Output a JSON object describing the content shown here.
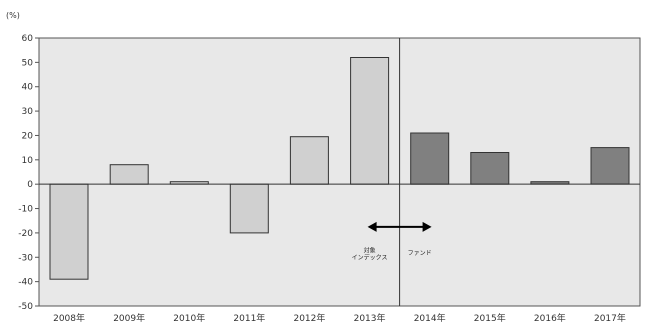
{
  "chart_data": {
    "type": "bar",
    "unit_label": "(%)",
    "categories": [
      "2008年",
      "2009年",
      "2010年",
      "2011年",
      "2012年",
      "2013年",
      "2014年",
      "2015年",
      "2016年",
      "2017年"
    ],
    "series": [
      {
        "values": [
          -39,
          8,
          1,
          -20,
          19.5,
          52,
          null,
          null,
          null,
          null
        ],
        "color": "#d0d0d0"
      },
      {
        "values": [
          null,
          null,
          null,
          null,
          null,
          null,
          21,
          13,
          1,
          15
        ],
        "color": "#808080"
      }
    ],
    "ylim": [
      -50,
      60
    ],
    "yticks": [
      60,
      50,
      40,
      30,
      20,
      10,
      0,
      -10,
      -20,
      -30,
      -40,
      -50
    ],
    "plot_background": "#e8e8e8",
    "annotations": {
      "left_label_line1": "対象",
      "left_label_line2": "インデックス",
      "right_label": "ファンド"
    }
  }
}
